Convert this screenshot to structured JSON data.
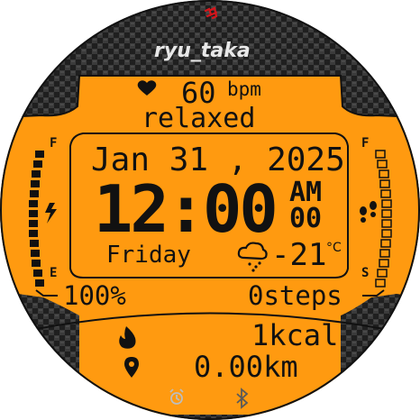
{
  "header": {
    "brand": "ryu_taka",
    "logo": "red-kanji-logo"
  },
  "heart": {
    "icon": "heart-icon",
    "value": "60",
    "unit": "bpm",
    "state": "relaxed"
  },
  "date": {
    "text": "Jan 31 , 2025"
  },
  "time": {
    "hhmm": "12:00",
    "ampm": "AM",
    "seconds": "00"
  },
  "day": {
    "name": "Friday"
  },
  "weather": {
    "icon": "rain-cloud-icon",
    "temp": "-21",
    "unit": "°C"
  },
  "battery": {
    "top_label": "F",
    "bottom_label": "E",
    "percent": "100%",
    "level": 1.0,
    "icon": "lightning-icon",
    "colors": {
      "fill": "#000000"
    }
  },
  "steps": {
    "top_label": "F",
    "bottom_label": "S",
    "text": "0steps",
    "level": 0.0,
    "icon": "footprints-icon"
  },
  "calories": {
    "icon": "flame-icon",
    "text": "1kcal"
  },
  "distance": {
    "icon": "location-pin-icon",
    "text": "0.00km"
  },
  "status": {
    "alarm_icon": "alarm-clock-icon",
    "bluetooth_icon": "bluetooth-icon"
  },
  "colors": {
    "accent": "#ff9a10",
    "frame": "#2a2a2a",
    "text": "#111111"
  }
}
